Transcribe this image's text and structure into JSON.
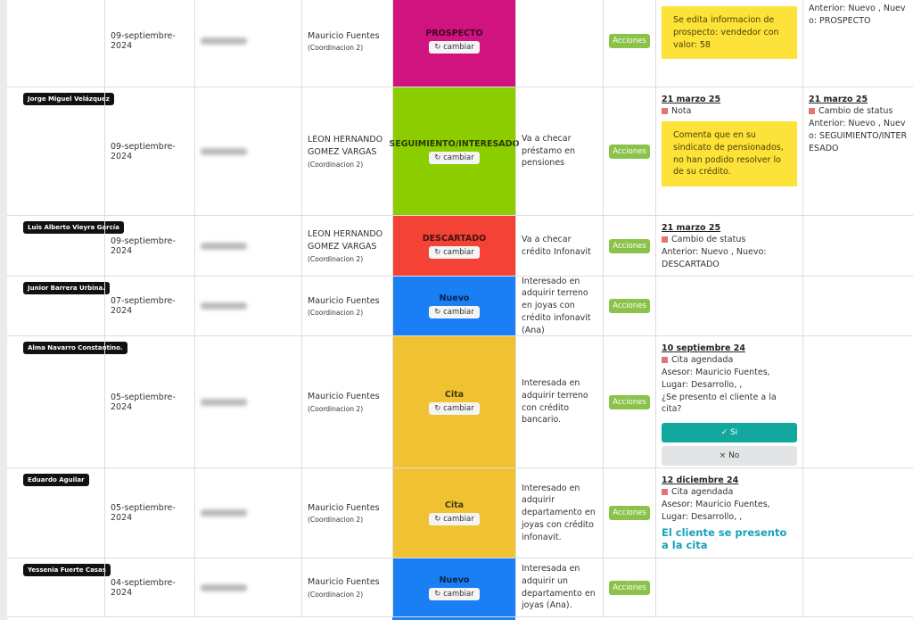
{
  "rows": [
    {
      "date": "09-septiembre-2024",
      "advisor": "Mauricio Fuentes",
      "coordination": "(Coordinacion 2)",
      "status": "PROSPECTO",
      "status_color": "#d1137f",
      "change": "cambiar",
      "actions": "Acciones",
      "activity": {
        "note": "Se edita informacion de prospecto: vendedor con valor: 58"
      },
      "last": {
        "text": "Anterior: Nuevo , Nuevo: PROSPECTO"
      }
    },
    {
      "name": "Jorge Miguel Velázquez",
      "date": "09-septiembre-2024",
      "advisor": "LEON HERNANDO GOMEZ VARGAS",
      "coordination": "(Coordinacion 2)",
      "status": "SEGUIMIENTO/INTERESADO",
      "status_color": "#8ccd00",
      "change": "cambiar",
      "comment": "Va a checar préstamo en pensiones",
      "actions": "Acciones",
      "activity": {
        "date": "21 marzo 25",
        "type": "Nota",
        "note": "Comenta que en su sindicato de pensionados, no han podido resolver lo de su crédito."
      },
      "last": {
        "date": "21 marzo 25",
        "type": "Cambio de status",
        "text": "Anterior: Nuevo , Nuevo: SEGUIMIENTO/INTERESADO"
      }
    },
    {
      "name": "Luis Alberto Vieyra García",
      "date": "09-septiembre-2024",
      "advisor": "LEON HERNANDO GOMEZ VARGAS",
      "coordination": "(Coordinacion 2)",
      "status": "DESCARTADO",
      "status_color": "#f44336",
      "change": "cambiar",
      "comment": "Va a checar crédito Infonavit",
      "actions": "Acciones",
      "activity": {
        "date": "21 marzo 25",
        "type": "Cambio de status",
        "text": "Anterior: Nuevo , Nuevo: DESCARTADO"
      }
    },
    {
      "name": "Junior Barrera Urbina.",
      "date": "07-septiembre-2024",
      "advisor": "Mauricio Fuentes",
      "coordination": "(Coordinacion 2)",
      "status": "Nuevo",
      "status_color": "#1a7ff5",
      "change": "cambiar",
      "comment": "Interesado en adquirir terreno en joyas con crédito infonavit (Ana)",
      "actions": "Acciones"
    },
    {
      "name": "Alma Navarro Constantino.",
      "date": "05-septiembre-2024",
      "advisor": "Mauricio Fuentes",
      "coordination": "(Coordinacion 2)",
      "status": "Cita",
      "status_color": "#f0c232",
      "change": "cambiar",
      "comment": "Interesada en adquirir terreno con crédito bancario.",
      "actions": "Acciones",
      "activity": {
        "date": "10 septiembre 24",
        "type": "Cita agendada",
        "text": "Asesor: Mauricio Fuentes, Lugar: Desarrollo, ,",
        "question": "¿Se presento el cliente a la cita?",
        "yes": "Si",
        "no": "No"
      }
    },
    {
      "name": "Eduardo Aguilar",
      "date": "05-septiembre-2024",
      "advisor": "Mauricio Fuentes",
      "coordination": "(Coordinacion 2)",
      "status": "Cita",
      "status_color": "#f0c232",
      "change": "cambiar",
      "comment": "Interesado en adquirir departamento en joyas con crédito infonavit.",
      "actions": "Acciones",
      "activity": {
        "date": "12 diciembre 24",
        "type": "Cita agendada",
        "text": "Asesor: Mauricio Fuentes, Lugar: Desarrollo, ,",
        "result": "El cliente se presento a la cita"
      }
    },
    {
      "name": "Yessenia Fuerte Casas",
      "date": "04-septiembre-2024",
      "advisor": "Mauricio Fuentes",
      "coordination": "(Coordinacion 2)",
      "status": "Nuevo",
      "status_color": "#1a7ff5",
      "change": "cambiar",
      "comment": "Interesada en adquirir un departamento en joyas (Ana).",
      "actions": "Acciones"
    }
  ]
}
